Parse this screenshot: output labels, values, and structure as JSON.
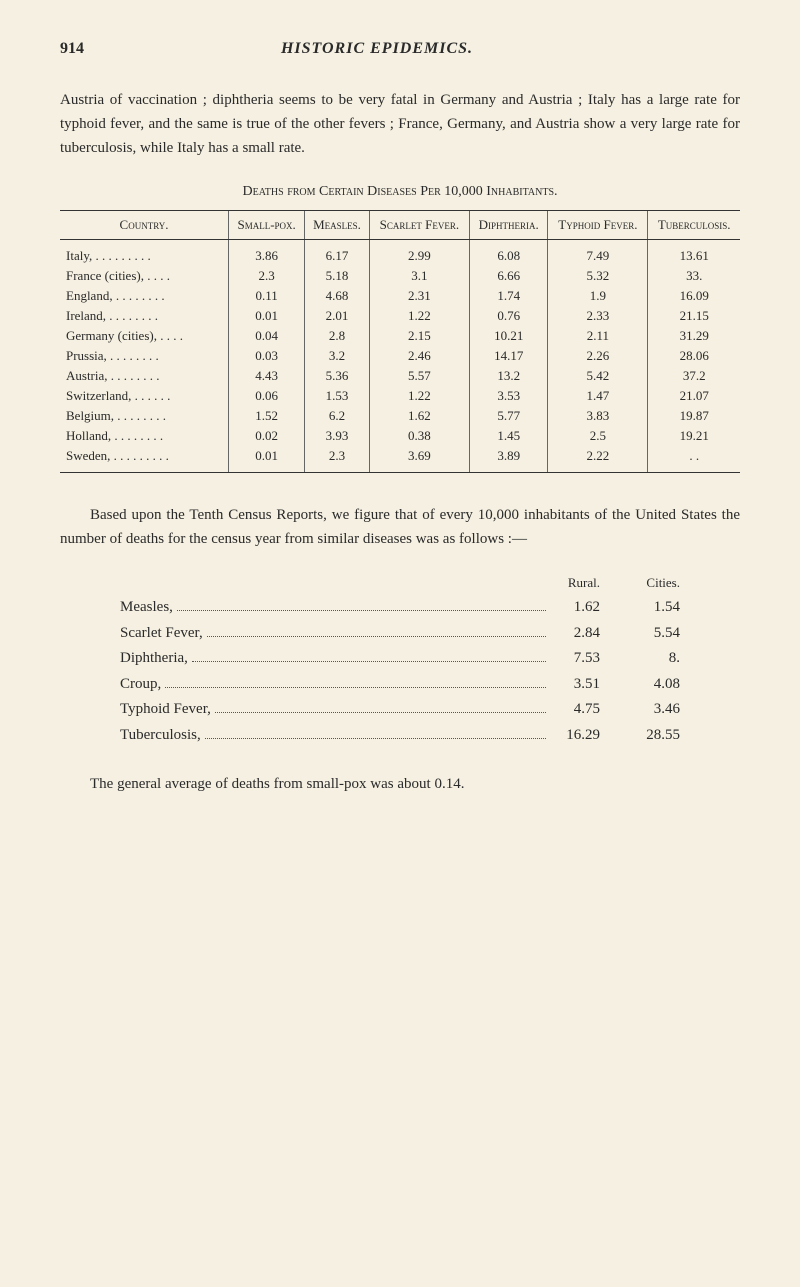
{
  "header": {
    "pageNumber": "914",
    "pageTitle": "HISTORIC EPIDEMICS."
  },
  "paragraph1": "Austria of vaccination ; diphtheria seems to be very fatal in Germany and Austria ; Italy has a large rate for typhoid fever, and the same is true of the other fevers ; France, Germany, and Austria show a very large rate for tuberculosis, while Italy has a small rate.",
  "tableTitle": "Deaths from Certain Diseases Per 10,000 Inhabitants.",
  "tableHeaders": [
    "Country.",
    "Small-pox.",
    "Measles.",
    "Scarlet Fever.",
    "Diphtheria.",
    "Typhoid Fever.",
    "Tuberculosis."
  ],
  "tableRows": [
    {
      "country": "Italy,",
      "vals": [
        "3.86",
        "6.17",
        "2.99",
        "6.08",
        "7.49",
        "13.61"
      ]
    },
    {
      "country": "France (cities),",
      "vals": [
        "2.3",
        "5.18",
        "3.1",
        "6.66",
        "5.32",
        "33."
      ]
    },
    {
      "country": "England,",
      "vals": [
        "0.11",
        "4.68",
        "2.31",
        "1.74",
        "1.9",
        "16.09"
      ]
    },
    {
      "country": "Ireland,",
      "vals": [
        "0.01",
        "2.01",
        "1.22",
        "0.76",
        "2.33",
        "21.15"
      ]
    },
    {
      "country": "Germany (cities),",
      "vals": [
        "0.04",
        "2.8",
        "2.15",
        "10.21",
        "2.11",
        "31.29"
      ]
    },
    {
      "country": "Prussia,",
      "vals": [
        "0.03",
        "3.2",
        "2.46",
        "14.17",
        "2.26",
        "28.06"
      ]
    },
    {
      "country": "Austria,",
      "vals": [
        "4.43",
        "5.36",
        "5.57",
        "13.2",
        "5.42",
        "37.2"
      ]
    },
    {
      "country": "Switzerland,",
      "vals": [
        "0.06",
        "1.53",
        "1.22",
        "3.53",
        "1.47",
        "21.07"
      ]
    },
    {
      "country": "Belgium,",
      "vals": [
        "1.52",
        "6.2",
        "1.62",
        "5.77",
        "3.83",
        "19.87"
      ]
    },
    {
      "country": "Holland,",
      "vals": [
        "0.02",
        "3.93",
        "0.38",
        "1.45",
        "2.5",
        "19.21"
      ]
    },
    {
      "country": "Sweden,",
      "vals": [
        "0.01",
        "2.3",
        "3.69",
        "3.89",
        "2.22",
        ". ."
      ]
    }
  ],
  "paragraph2": "Based upon the Tenth Census Reports, we figure that of every 10,000 inhabitants of the United States the number of deaths for the census year from similar diseases was as follows :—",
  "listHeaders": {
    "rural": "Rural.",
    "cities": "Cities."
  },
  "listRows": [
    {
      "label": "Measles,",
      "rural": "1.62",
      "cities": "1.54"
    },
    {
      "label": "Scarlet Fever,",
      "rural": "2.84",
      "cities": "5.54"
    },
    {
      "label": "Diphtheria,",
      "rural": "7.53",
      "cities": "8."
    },
    {
      "label": "Croup,",
      "rural": "3.51",
      "cities": "4.08"
    },
    {
      "label": "Typhoid Fever,",
      "rural": "4.75",
      "cities": "3.46"
    },
    {
      "label": "Tuberculosis,",
      "rural": "16.29",
      "cities": "28.55"
    }
  ],
  "paragraph3": "The general average of deaths from small-pox was about 0.14."
}
